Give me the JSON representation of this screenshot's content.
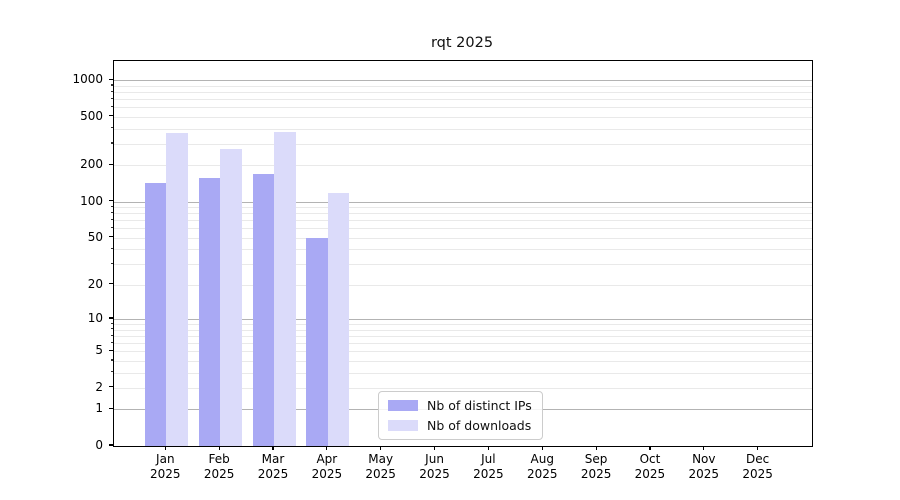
{
  "chart_data": {
    "type": "bar",
    "title": "rqt 2025",
    "categories": [
      "Jan 2025",
      "Feb 2025",
      "Mar 2025",
      "Apr 2025",
      "May 2025",
      "Jun 2025",
      "Jul 2025",
      "Aug 2025",
      "Sep 2025",
      "Oct 2025",
      "Nov 2025",
      "Dec 2025"
    ],
    "series": [
      {
        "name": "Nb of distinct IPs",
        "color": "#a9a9f4",
        "values": [
          143,
          158,
          168,
          50,
          0,
          0,
          0,
          0,
          0,
          0,
          0,
          0
        ]
      },
      {
        "name": "Nb of downloads",
        "color": "#dbdbfa",
        "values": [
          370,
          272,
          378,
          118,
          0,
          0,
          0,
          0,
          0,
          0,
          0,
          0
        ]
      }
    ],
    "yscale": "log1p",
    "yticks": [
      0,
      1,
      2,
      5,
      10,
      20,
      50,
      100,
      200,
      500,
      1000
    ],
    "yminorticks": [
      2,
      3,
      4,
      5,
      6,
      7,
      8,
      9,
      20,
      30,
      40,
      50,
      60,
      70,
      80,
      90,
      200,
      300,
      400,
      500,
      600,
      700,
      800,
      900
    ],
    "ymajorgrid": [
      1,
      10,
      100,
      1000
    ],
    "ylim": [
      0,
      1437
    ],
    "grid": {
      "major_color": "#b3b3b3",
      "minor_color": "#e9e9e9"
    },
    "legend_position": "lower center-left inside plot",
    "bar_orientation": "vertical grouped pairs"
  }
}
